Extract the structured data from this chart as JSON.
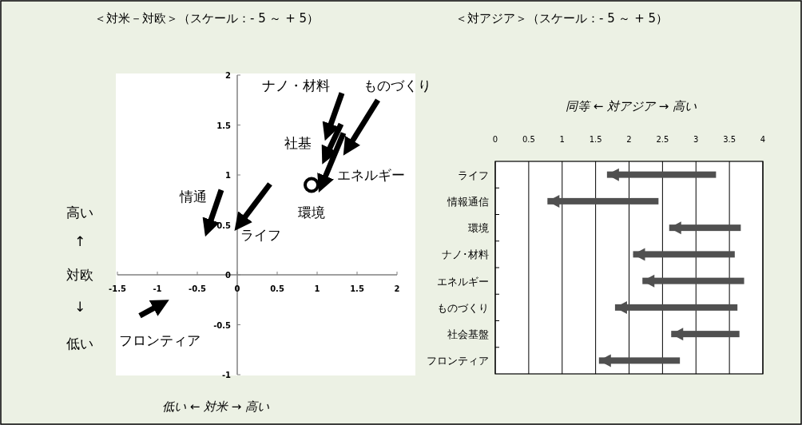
{
  "chart_data": [
    {
      "type": "line",
      "title": "＜対米－対欧＞（スケール：- 5 ～ + 5）",
      "xlabel": "低い ← 対米 → 高い",
      "ylabel": "高い\n↑\n対欧\n↓\n低い",
      "xlim": [
        -1.5,
        2
      ],
      "ylim": [
        -1,
        2
      ],
      "xticks": [
        -1.5,
        -1,
        -0.5,
        0,
        0.5,
        1,
        1.5,
        2
      ],
      "yticks": [
        -1,
        -0.5,
        0,
        0.5,
        1,
        1.5,
        2
      ],
      "grid": false,
      "line_style": "solid",
      "series": [
        {
          "name": "ナノ・材料",
          "color": "#000000",
          "x": [
            1.31,
            1.15
          ],
          "values": [
            1.82,
            1.46
          ]
        },
        {
          "name": "ものづくり",
          "color": "#000000",
          "x": [
            1.76,
            1.41
          ],
          "values": [
            1.75,
            1.3
          ]
        },
        {
          "name": "社基",
          "color": "#000000",
          "x": [
            1.3,
            1.13
          ],
          "values": [
            1.51,
            1.22
          ]
        },
        {
          "name": "エネルギー",
          "color": "#000000",
          "x": [
            1.33,
            1.08
          ],
          "values": [
            1.42,
            0.94
          ]
        },
        {
          "name": "環境",
          "type": "scatter",
          "marker": "circle",
          "color": "#000000",
          "x": [
            0.93
          ],
          "values": [
            0.9
          ]
        },
        {
          "name": "情通",
          "color": "#000000",
          "x": [
            -0.2,
            -0.35
          ],
          "values": [
            0.85,
            0.5
          ]
        },
        {
          "name": "ライフ",
          "color": "#000000",
          "x": [
            0.41,
            0.06
          ],
          "values": [
            0.91,
            0.54
          ]
        },
        {
          "name": "フロンティア",
          "color": "#000000",
          "x": [
            -1.22,
            -0.99
          ],
          "values": [
            -0.41,
            -0.31
          ]
        }
      ]
    },
    {
      "type": "bar",
      "orientation": "horizontal",
      "title": "＜対アジア＞（スケール：- 5 ～ + 5）",
      "xlabel": "同等 ← 対アジア → 高い",
      "categories": [
        "ライフ",
        "情報通信",
        "環境",
        "ナノ･材料",
        "エネルギー",
        "ものづくり",
        "社会基盤",
        "フロンティア"
      ],
      "xlim": [
        0,
        4
      ],
      "xticks": [
        0,
        0.5,
        1,
        1.5,
        2,
        2.5,
        3,
        3.5,
        4
      ],
      "grid": "x",
      "color": "#505050",
      "base": [
        3.3,
        2.44,
        3.67,
        3.58,
        3.72,
        3.62,
        3.65,
        2.76
      ],
      "values": [
        -1.63,
        -1.66,
        -1.07,
        -1.52,
        -1.52,
        -1.83,
        -1.02,
        -1.21
      ]
    }
  ]
}
